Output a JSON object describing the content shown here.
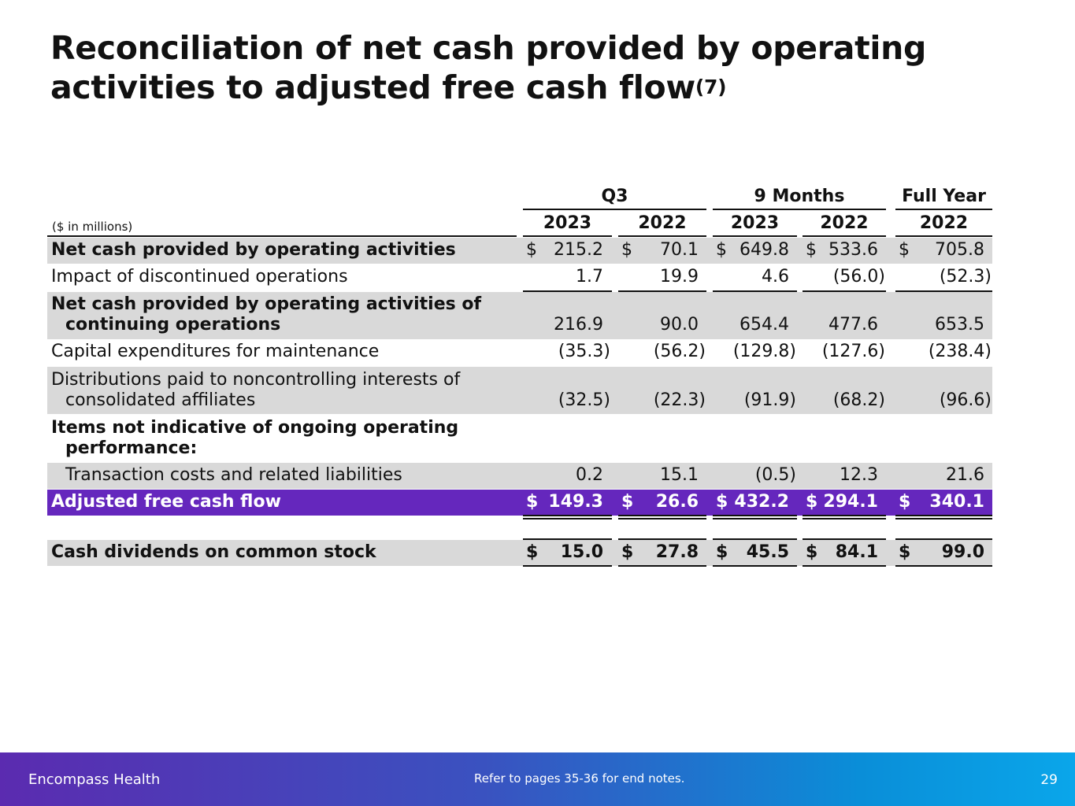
{
  "title": {
    "line1": "Reconciliation of net cash provided by operating",
    "line2": "activities to adjusted free cash flow",
    "sup": "(7)"
  },
  "table": {
    "units_label": "($ in millions)",
    "groups": [
      "Q3",
      "9 Months",
      "Full Year"
    ],
    "years": [
      "2023",
      "2022",
      "2023",
      "2022",
      "2022"
    ],
    "rows": {
      "net_cash_ops": {
        "label": "Net cash provided by operating activities",
        "values": [
          "215.2",
          "70.1",
          "649.8",
          "533.6",
          "705.8"
        ]
      },
      "discontinued": {
        "label": "Impact of discontinued operations",
        "values": [
          "1.7",
          "19.9",
          "4.6",
          "(56.0)",
          "(52.3)"
        ]
      },
      "net_cash_cont": {
        "label_line1": "Net cash provided by operating activities of",
        "label_line2": "continuing operations",
        "values": [
          "216.9",
          "90.0",
          "654.4",
          "477.6",
          "653.5"
        ]
      },
      "capex": {
        "label": "Capital expenditures for maintenance",
        "values": [
          "(35.3)",
          "(56.2)",
          "(129.8)",
          "(127.6)",
          "(238.4)"
        ]
      },
      "distributions": {
        "label_line1": "Distributions paid to noncontrolling interests of",
        "label_line2": "consolidated affiliates",
        "values": [
          "(32.5)",
          "(22.3)",
          "(91.9)",
          "(68.2)",
          "(96.6)"
        ]
      },
      "items_header": {
        "label_line1": "Items not indicative of ongoing operating",
        "label_line2": "performance:"
      },
      "transaction": {
        "label": "Transaction costs and related liabilities",
        "values": [
          "0.2",
          "15.1",
          "(0.5)",
          "12.3",
          "21.6"
        ]
      },
      "adjusted_fcf": {
        "label": "Adjusted free cash flow",
        "values": [
          "149.3",
          "26.6",
          "432.2",
          "294.1",
          "340.1"
        ]
      },
      "dividends": {
        "label": "Cash dividends on common stock",
        "values": [
          "15.0",
          "27.8",
          "45.5",
          "84.1",
          "99.0"
        ]
      }
    },
    "dollar_sign": "$"
  },
  "footer": {
    "company": "Encompass Health",
    "note": "Refer to pages 35-36 for end notes.",
    "page": "29"
  },
  "colors": {
    "highlight": "#6527bd",
    "band": "#d9d9d9",
    "footer_start": "#5b2bb0",
    "footer_end": "#0aa6ea"
  }
}
